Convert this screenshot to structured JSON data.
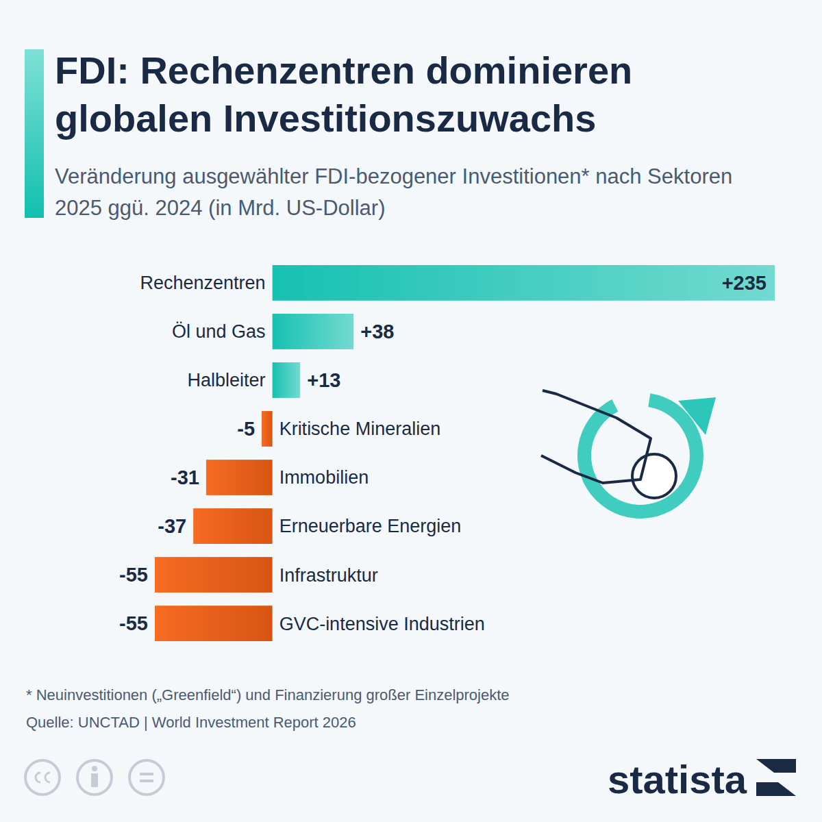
{
  "chart_data": {
    "type": "bar",
    "orientation": "horizontal",
    "title": "FDI: Rechenzentren dominieren globalen Investitionszuwachs",
    "subtitle": "Veränderung ausgewählter FDI-bezogener Investitionen* nach Sektoren 2025 ggü. 2024 (in Mrd. US-Dollar)",
    "categories": [
      "Rechenzentren",
      "Öl und Gas",
      "Halbleiter",
      "Kritische Mineralien",
      "Immobilien",
      "Erneuerbare Energien",
      "Infrastruktur",
      "GVC-intensive Industrien"
    ],
    "values": [
      235,
      38,
      13,
      -5,
      -31,
      -37,
      -55,
      -55
    ],
    "value_labels": [
      "+235",
      "+38",
      "+13",
      "-5",
      "-31",
      "-37",
      "-55",
      "-55"
    ],
    "colors": [
      "#16c1b1",
      "#16c1b1",
      "#16c1b1",
      "#f76b22",
      "#f76b22",
      "#f76b22",
      "#f76b22",
      "#f76b22"
    ],
    "xlim": [
      -55,
      235
    ],
    "xticks": [],
    "tick_labels": "y",
    "data_labels": true,
    "grid": false,
    "footnote": "* Neuinvestitionen („Greenfield“) und Finanzierung großer Einzelprojekte",
    "source": "Quelle: UNCTAD | World Investment Report 2026",
    "brand": "statista"
  }
}
